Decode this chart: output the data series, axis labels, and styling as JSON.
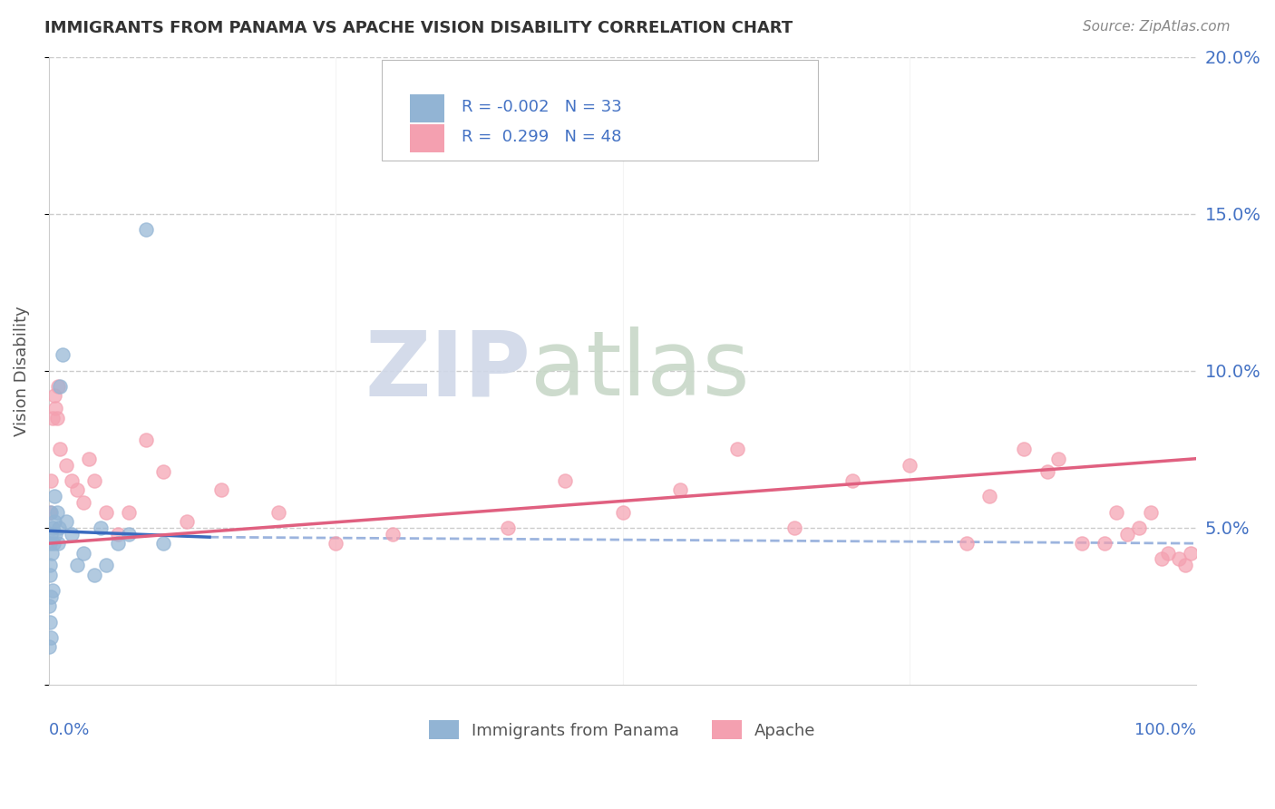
{
  "title": "IMMIGRANTS FROM PANAMA VS APACHE VISION DISABILITY CORRELATION CHART",
  "source": "Source: ZipAtlas.com",
  "ylabel": "Vision Disability",
  "watermark_zip": "ZIP",
  "watermark_atlas": "atlas",
  "legend_blue_r": "-0.002",
  "legend_blue_n": "33",
  "legend_pink_r": "0.299",
  "legend_pink_n": "48",
  "blue_color": "#92b4d4",
  "pink_color": "#f4a0b0",
  "blue_line_color": "#3a6bbf",
  "pink_line_color": "#e06080",
  "title_color": "#333333",
  "axis_label_color": "#4472c4",
  "source_color": "#888888",
  "ylabel_color": "#555555",
  "xlim": [
    0,
    100
  ],
  "ylim": [
    0,
    20
  ],
  "blue_scatter_x": [
    0.05,
    0.05,
    0.07,
    0.1,
    0.1,
    0.1,
    0.15,
    0.15,
    0.2,
    0.2,
    0.25,
    0.3,
    0.3,
    0.4,
    0.5,
    0.5,
    0.6,
    0.7,
    0.8,
    0.9,
    1.0,
    1.2,
    1.5,
    2.0,
    2.5,
    3.0,
    4.0,
    4.5,
    5.0,
    6.0,
    7.0,
    8.5,
    10.0
  ],
  "blue_scatter_y": [
    1.2,
    2.5,
    3.8,
    2.0,
    3.5,
    4.5,
    1.5,
    4.8,
    2.8,
    5.5,
    4.2,
    3.0,
    5.0,
    4.5,
    5.2,
    6.0,
    4.8,
    5.5,
    4.5,
    5.0,
    9.5,
    10.5,
    5.2,
    4.8,
    3.8,
    4.2,
    3.5,
    5.0,
    3.8,
    4.5,
    4.8,
    14.5,
    4.5
  ],
  "pink_scatter_x": [
    0.1,
    0.2,
    0.3,
    0.5,
    0.6,
    0.7,
    0.8,
    1.0,
    1.5,
    2.0,
    2.5,
    3.0,
    3.5,
    4.0,
    5.0,
    6.0,
    7.0,
    8.5,
    10.0,
    12.0,
    15.0,
    20.0,
    25.0,
    30.0,
    40.0,
    45.0,
    50.0,
    55.0,
    60.0,
    65.0,
    70.0,
    75.0,
    80.0,
    82.0,
    85.0,
    87.0,
    88.0,
    90.0,
    92.0,
    93.0,
    94.0,
    95.0,
    96.0,
    97.0,
    97.5,
    98.5,
    99.0,
    99.5
  ],
  "pink_scatter_y": [
    5.5,
    6.5,
    8.5,
    9.2,
    8.8,
    8.5,
    9.5,
    7.5,
    7.0,
    6.5,
    6.2,
    5.8,
    7.2,
    6.5,
    5.5,
    4.8,
    5.5,
    7.8,
    6.8,
    5.2,
    6.2,
    5.5,
    4.5,
    4.8,
    5.0,
    6.5,
    5.5,
    6.2,
    7.5,
    5.0,
    6.5,
    7.0,
    4.5,
    6.0,
    7.5,
    6.8,
    7.2,
    4.5,
    4.5,
    5.5,
    4.8,
    5.0,
    5.5,
    4.0,
    4.2,
    4.0,
    3.8,
    4.2
  ],
  "blue_line_x": [
    0,
    14
  ],
  "blue_line_y": [
    4.9,
    4.7
  ],
  "pink_line_x": [
    0,
    100
  ],
  "pink_line_y": [
    4.5,
    7.2
  ],
  "dashed_line_y": 4.5,
  "background_color": "#ffffff",
  "grid_color": "#cccccc",
  "grid_style": "--"
}
